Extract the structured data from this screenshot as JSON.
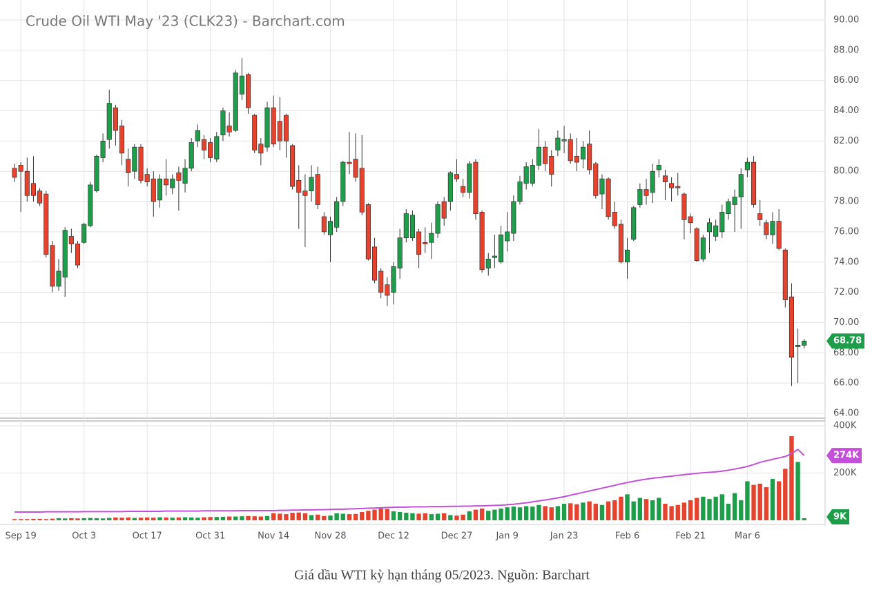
{
  "chart_data": [
    {
      "type": "candlestick",
      "title": "Crude Oil WTI May '23 (CLK23) - Barchart.com",
      "categories": [
        null,
        "Sep 19",
        null,
        null,
        null,
        null,
        null,
        null,
        null,
        null,
        null,
        "Oct 3",
        null,
        null,
        null,
        null,
        null,
        null,
        null,
        null,
        null,
        "Oct 17",
        null,
        null,
        null,
        null,
        null,
        null,
        null,
        null,
        null,
        "Oct 31",
        null,
        null,
        null,
        null,
        null,
        null,
        null,
        null,
        null,
        "Nov 14",
        null,
        null,
        null,
        null,
        null,
        null,
        null,
        null,
        "Nov 28",
        null,
        null,
        null,
        null,
        null,
        null,
        null,
        null,
        null,
        "Dec 12",
        null,
        null,
        null,
        null,
        null,
        null,
        null,
        null,
        null,
        "Dec 27",
        null,
        null,
        null,
        null,
        null,
        null,
        null,
        "Jan 9",
        null,
        null,
        null,
        null,
        null,
        null,
        null,
        null,
        "Jan 23",
        null,
        null,
        null,
        null,
        null,
        null,
        null,
        null,
        null,
        "Feb 6",
        null,
        null,
        null,
        null,
        null,
        null,
        null,
        null,
        null,
        "Feb 21",
        null,
        null,
        null,
        null,
        null,
        null,
        null,
        null,
        "Mar 6",
        null,
        null,
        null,
        null,
        null,
        null,
        null,
        null,
        null
      ],
      "open": [
        80.2,
        80.4,
        80.0,
        79.2,
        78.7,
        78.5,
        75.1,
        72.4,
        73.0,
        75.7,
        75.2,
        75.3,
        76.4,
        78.7,
        80.9,
        82.1,
        84.2,
        83.0,
        80.8,
        80.0,
        81.6,
        79.8,
        79.5,
        78.1,
        79.5,
        78.9,
        79.9,
        79.2,
        80.2,
        82.0,
        82.1,
        81.9,
        80.8,
        82.4,
        83.0,
        82.7,
        85.1,
        86.4,
        83.7,
        81.8,
        81.6,
        84.2,
        83.3,
        83.7,
        81.7,
        79.4,
        78.7,
        78.7,
        79.8,
        77.0,
        75.8,
        76.3,
        78.0,
        80.6,
        80.8,
        80.2,
        77.8,
        75.0,
        73.4,
        72.5,
        72.0,
        73.6,
        75.6,
        75.6,
        76.0,
        75.3,
        75.3,
        75.9,
        78.0,
        78.0,
        79.8,
        79.0,
        78.6,
        80.6,
        77.3,
        73.6,
        74.3,
        74.0,
        75.4,
        75.9,
        78.0,
        79.2,
        79.2,
        80.4,
        81.6,
        81.0,
        81.4,
        82.0,
        82.1,
        81.0,
        80.8,
        81.8,
        80.5,
        78.5,
        79.5,
        77.3,
        76.5,
        74.0,
        75.5,
        77.8,
        78.8,
        78.6,
        80.1,
        79.7,
        79.2,
        79.0,
        78.5,
        77.0,
        76.2,
        74.2,
        76.0,
        75.7,
        76.0,
        77.2,
        77.8,
        78.3,
        80.1,
        80.6,
        77.2,
        76.6,
        75.8,
        76.7,
        74.8,
        71.7,
        68.4,
        68.5
      ],
      "high": [
        80.5,
        80.6,
        80.9,
        81.0,
        78.9,
        78.7,
        75.4,
        74.2,
        76.3,
        76.2,
        75.4,
        76.6,
        79.3,
        81.1,
        82.5,
        85.4,
        84.4,
        83.4,
        81.5,
        81.8,
        81.8,
        80.2,
        80.0,
        79.8,
        80.8,
        79.8,
        80.3,
        80.8,
        82.2,
        83.1,
        82.4,
        82.2,
        82.6,
        84.2,
        83.9,
        86.7,
        87.5,
        86.5,
        83.8,
        82.2,
        84.6,
        85.0,
        84.9,
        83.8,
        81.8,
        80.4,
        79.8,
        80.4,
        80.3,
        77.3,
        77.0,
        78.3,
        80.7,
        82.6,
        82.5,
        82.4,
        77.9,
        75.6,
        73.6,
        73.0,
        74.0,
        76.2,
        77.5,
        77.4,
        76.2,
        76.3,
        76.6,
        78.0,
        78.3,
        80.0,
        80.8,
        79.5,
        80.7,
        80.8,
        77.4,
        74.6,
        75.8,
        76.4,
        77.3,
        78.4,
        79.7,
        80.6,
        80.8,
        82.8,
        82.0,
        81.4,
        82.7,
        83.0,
        82.5,
        82.2,
        82.0,
        82.7,
        80.6,
        79.8,
        79.6,
        78.0,
        76.8,
        75.6,
        77.7,
        79.2,
        79.5,
        80.5,
        80.8,
        80.1,
        79.6,
        79.9,
        78.6,
        77.2,
        76.3,
        75.8,
        76.9,
        76.8,
        77.8,
        78.2,
        78.8,
        80.2,
        80.9,
        81.0,
        78.1,
        76.8,
        77.3,
        77.5,
        74.9,
        72.6,
        69.6,
        68.9
      ],
      "low": [
        79.3,
        77.3,
        78.0,
        78.0,
        77.7,
        74.3,
        72.0,
        72.1,
        71.7,
        74.6,
        73.6,
        75.2,
        76.3,
        78.6,
        80.6,
        81.5,
        81.7,
        80.4,
        79.0,
        79.5,
        79.2,
        79.0,
        77.0,
        77.6,
        78.4,
        78.5,
        77.4,
        78.6,
        80.0,
        81.6,
        80.8,
        80.6,
        80.6,
        82.0,
        82.3,
        82.6,
        84.7,
        83.8,
        81.2,
        80.4,
        81.3,
        81.6,
        81.4,
        80.9,
        78.8,
        76.2,
        75.0,
        78.0,
        77.5,
        75.8,
        74.0,
        76.0,
        77.7,
        79.8,
        79.3,
        77.1,
        74.1,
        72.6,
        71.6,
        71.1,
        71.2,
        72.9,
        75.3,
        75.4,
        73.6,
        74.6,
        74.2,
        75.6,
        76.4,
        77.4,
        79.3,
        78.3,
        78.2,
        76.8,
        73.3,
        73.1,
        73.6,
        73.9,
        74.7,
        75.4,
        77.8,
        78.8,
        79.0,
        80.1,
        80.0,
        79.0,
        81.0,
        81.2,
        80.5,
        80.0,
        80.2,
        79.8,
        78.2,
        77.5,
        76.8,
        76.2,
        73.9,
        72.9,
        75.4,
        77.6,
        77.8,
        77.9,
        79.6,
        78.1,
        78.0,
        78.4,
        75.5,
        75.9,
        74.0,
        74.0,
        74.6,
        75.4,
        75.6,
        76.8,
        76.0,
        76.2,
        79.6,
        77.6,
        76.4,
        75.5,
        75.2,
        74.8,
        71.0,
        65.8,
        66.0,
        68.3
      ],
      "close": [
        79.6,
        80.0,
        78.4,
        78.4,
        77.9,
        74.5,
        72.4,
        73.4,
        76.1,
        75.2,
        73.8,
        76.5,
        79.1,
        81.0,
        82.0,
        84.5,
        82.7,
        81.2,
        79.9,
        81.6,
        79.4,
        79.3,
        78.0,
        79.5,
        79.1,
        79.5,
        79.4,
        80.2,
        81.9,
        82.7,
        81.4,
        80.9,
        82.3,
        84.0,
        82.6,
        86.5,
        86.3,
        84.2,
        81.4,
        81.2,
        84.2,
        81.8,
        82.0,
        82.0,
        79.0,
        78.6,
        78.4,
        79.6,
        77.8,
        76.0,
        76.7,
        78.0,
        80.6,
        80.5,
        79.6,
        77.3,
        74.2,
        72.8,
        72.0,
        71.8,
        73.7,
        75.6,
        77.2,
        77.1,
        74.5,
        75.2,
        75.9,
        77.8,
        76.9,
        79.9,
        79.5,
        78.6,
        80.5,
        77.2,
        73.5,
        74.2,
        74.4,
        75.8,
        76.0,
        78.0,
        79.3,
        80.3,
        80.4,
        81.6,
        80.5,
        79.8,
        82.2,
        82.1,
        80.7,
        80.6,
        81.6,
        80.1,
        78.4,
        79.5,
        77.0,
        76.4,
        74.0,
        74.8,
        77.6,
        78.8,
        78.4,
        80.0,
        80.4,
        79.3,
        78.9,
        78.9,
        76.8,
        76.6,
        74.1,
        75.6,
        76.6,
        76.4,
        77.3,
        78.0,
        78.3,
        79.8,
        80.6,
        77.8,
        76.8,
        75.8,
        76.7,
        74.9,
        71.5,
        67.7,
        68.5,
        68.78
      ],
      "ylim": [
        64,
        90
      ],
      "yticks": [
        {
          "value": 64,
          "label": "64.00"
        },
        {
          "value": 66,
          "label": "66.00"
        },
        {
          "value": 68,
          "label": "68.00"
        },
        {
          "value": 70,
          "label": "70.00"
        },
        {
          "value": 72,
          "label": "72.00"
        },
        {
          "value": 74,
          "label": "74.00"
        },
        {
          "value": 76,
          "label": "76.00"
        },
        {
          "value": 78,
          "label": "78.00"
        },
        {
          "value": 80,
          "label": "80.00"
        },
        {
          "value": 82,
          "label": "82.00"
        },
        {
          "value": 84,
          "label": "84.00"
        },
        {
          "value": 86,
          "label": "86.00"
        },
        {
          "value": 88,
          "label": "88.00"
        },
        {
          "value": 90,
          "label": "90.00"
        }
      ],
      "up_color": "#1e9e4b",
      "down_color": "#e6432e",
      "grid": true
    },
    {
      "type": "volume",
      "values": [
        5000,
        5000,
        5000,
        6000,
        6000,
        5000,
        7000,
        9000,
        8000,
        9000,
        8000,
        9000,
        10000,
        9000,
        8000,
        10000,
        12000,
        11000,
        12000,
        10000,
        11000,
        12000,
        11000,
        13000,
        12000,
        11000,
        12000,
        13000,
        12000,
        11000,
        13000,
        14000,
        14000,
        15000,
        16000,
        16000,
        17000,
        18000,
        17000,
        16000,
        18000,
        30000,
        28000,
        26000,
        32000,
        33000,
        30000,
        22000,
        24000,
        18000,
        20000,
        30000,
        28000,
        26000,
        27000,
        35000,
        40000,
        45000,
        50000,
        48000,
        38000,
        35000,
        32000,
        30000,
        28000,
        30000,
        26000,
        28000,
        30000,
        22000,
        20000,
        24000,
        38000,
        45000,
        50000,
        40000,
        45000,
        50000,
        55000,
        58000,
        55000,
        60000,
        58000,
        65000,
        60000,
        55000,
        60000,
        70000,
        72000,
        68000,
        75000,
        80000,
        70000,
        65000,
        80000,
        85000,
        100000,
        110000,
        80000,
        95000,
        90000,
        85000,
        95000,
        70000,
        60000,
        65000,
        75000,
        85000,
        95000,
        100000,
        90000,
        100000,
        110000,
        70000,
        115000,
        85000,
        165000,
        150000,
        155000,
        140000,
        175000,
        165000,
        218000,
        356000,
        247000,
        9000
      ],
      "average": [
        35000,
        35000,
        35000,
        35000,
        35000,
        36000,
        36000,
        36000,
        36000,
        36000,
        36000,
        37000,
        37000,
        37000,
        37000,
        37000,
        37000,
        37000,
        38000,
        38000,
        38000,
        38000,
        38000,
        38000,
        39000,
        39000,
        39000,
        39000,
        39000,
        39000,
        40000,
        40000,
        40000,
        40000,
        40000,
        40000,
        41000,
        41000,
        41000,
        41000,
        41000,
        41000,
        42000,
        42000,
        43000,
        43000,
        44000,
        44000,
        45000,
        45000,
        46000,
        47000,
        47000,
        48000,
        49000,
        50000,
        51000,
        52000,
        53000,
        54000,
        55000,
        56000,
        56000,
        57000,
        57000,
        57000,
        58000,
        58000,
        58000,
        59000,
        59000,
        60000,
        60000,
        61000,
        61000,
        62000,
        63000,
        64000,
        66000,
        68000,
        71000,
        74000,
        78000,
        82000,
        86000,
        90000,
        95000,
        100000,
        106000,
        112000,
        118000,
        124000,
        130000,
        136000,
        142000,
        148000,
        154000,
        160000,
        165000,
        170000,
        174000,
        178000,
        181000,
        184000,
        187000,
        190000,
        193000,
        196000,
        199000,
        201000,
        203000,
        205000,
        208000,
        212000,
        217000,
        222000,
        228000,
        236000,
        245000,
        252000,
        258000,
        264000,
        270000,
        282000,
        300000,
        274000
      ],
      "average_color": "#c44fd8",
      "last_value_label": "9K",
      "last_average_label": "274K",
      "ylim": [
        0,
        400000
      ],
      "yticks": [
        {
          "value": 200000,
          "label": "200K"
        },
        {
          "value": 400000,
          "label": "400K"
        }
      ]
    }
  ],
  "caption": "Giá dầu WTI kỳ hạn tháng 05/2023. Nguồn: Barchart"
}
